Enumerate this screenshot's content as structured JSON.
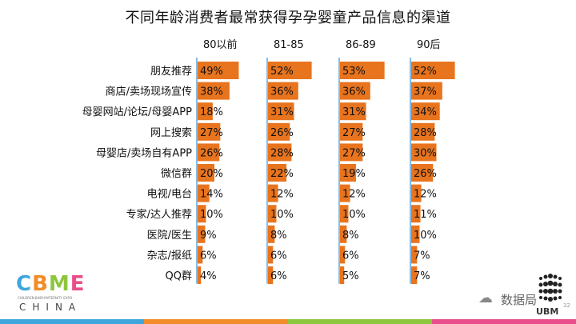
{
  "title": "不同年龄消费者最常获得孕孕婴童产品信息的渠道",
  "chart_data": {
    "type": "bar",
    "orientation": "horizontal",
    "categories": [
      "朋友推荐",
      "商店/卖场现场宣传",
      "母婴网站/论坛/母婴APP",
      "网上搜索",
      "母婴店/卖场自有APP",
      "微信群",
      "电视/电台",
      "专家/达人推荐",
      "医院/医生",
      "杂志/报纸",
      "QQ群"
    ],
    "series": [
      {
        "name": "80以前",
        "values": [
          49,
          38,
          18,
          27,
          26,
          20,
          14,
          10,
          9,
          6,
          4
        ]
      },
      {
        "name": "81-85",
        "values": [
          52,
          36,
          31,
          26,
          28,
          22,
          12,
          10,
          8,
          6,
          6
        ]
      },
      {
        "name": "86-89",
        "values": [
          53,
          36,
          31,
          27,
          27,
          19,
          12,
          10,
          8,
          6,
          5
        ]
      },
      {
        "name": "90后",
        "values": [
          52,
          37,
          34,
          28,
          30,
          26,
          12,
          11,
          10,
          7,
          7
        ]
      }
    ],
    "value_suffix": "%",
    "bar_color": "#E8741E",
    "divider_color": "#3A8FD4",
    "xlim": [
      0,
      55
    ]
  },
  "logos": {
    "cbme_letters": [
      "C",
      "B",
      "M",
      "E"
    ],
    "cbme_colors": [
      "#3FA6DC",
      "#F28C28",
      "#8DC63F",
      "#E84E8A"
    ],
    "cbme_sub": "CHILDREN-BABY-MATERNITY EXPO",
    "cbme_country": "CHINA",
    "watermark_text": "数据局",
    "ubm_text": "UBM"
  },
  "page_number": "32",
  "footer_colors": [
    "#3FA6DC",
    "#F28C28",
    "#8DC63F",
    "#E84E8A"
  ]
}
